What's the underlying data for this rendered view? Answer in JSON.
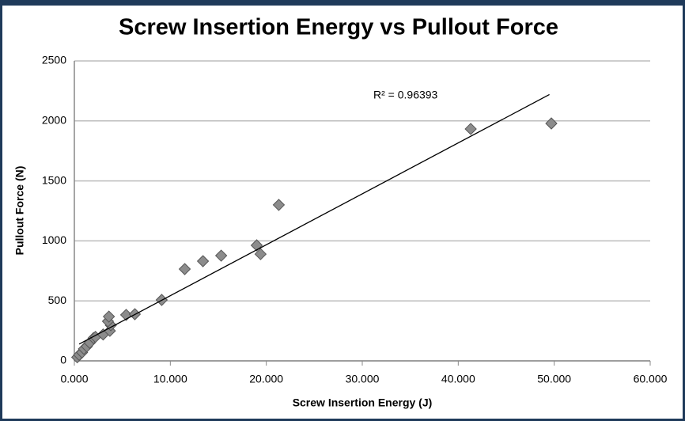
{
  "chart_data": {
    "type": "scatter",
    "title": "Screw Insertion Energy vs Pullout Force",
    "x_label": "Screw Insertion Energy (J)",
    "y_label": "Pullout Force (N)",
    "color": "#8c8c8c",
    "x": [
      0.3,
      0.5,
      0.8,
      1.0,
      1.3,
      1.6,
      2.0,
      2.2,
      3.0,
      3.7,
      3.8,
      3.5,
      3.6,
      5.4,
      6.3,
      9.1,
      11.5,
      13.4,
      15.3,
      19.0,
      19.4,
      21.3,
      41.3,
      49.7
    ],
    "values": [
      30,
      50,
      70,
      100,
      120,
      150,
      190,
      200,
      220,
      250,
      297,
      330,
      369,
      383,
      389,
      508,
      765,
      831,
      877,
      963,
      890,
      1300,
      1933,
      1979
    ],
    "xlim": [
      0,
      60
    ],
    "xticks": [
      {
        "value": 0,
        "label": "0.000"
      },
      {
        "value": 10,
        "label": "10.000"
      },
      {
        "value": 20,
        "label": "20.000"
      },
      {
        "value": 30,
        "label": "30.000"
      },
      {
        "value": 40,
        "label": "40.000"
      },
      {
        "value": 50,
        "label": "50.000"
      },
      {
        "value": 60,
        "label": "60.000"
      }
    ],
    "ylim": [
      0,
      2500
    ],
    "yticks": [
      0,
      500,
      1000,
      1500,
      2000,
      2500
    ],
    "grid": true,
    "trendline": {
      "x": [
        0.5,
        49.5
      ],
      "y": [
        140,
        2220
      ],
      "label": "R² = 0.96393"
    }
  }
}
